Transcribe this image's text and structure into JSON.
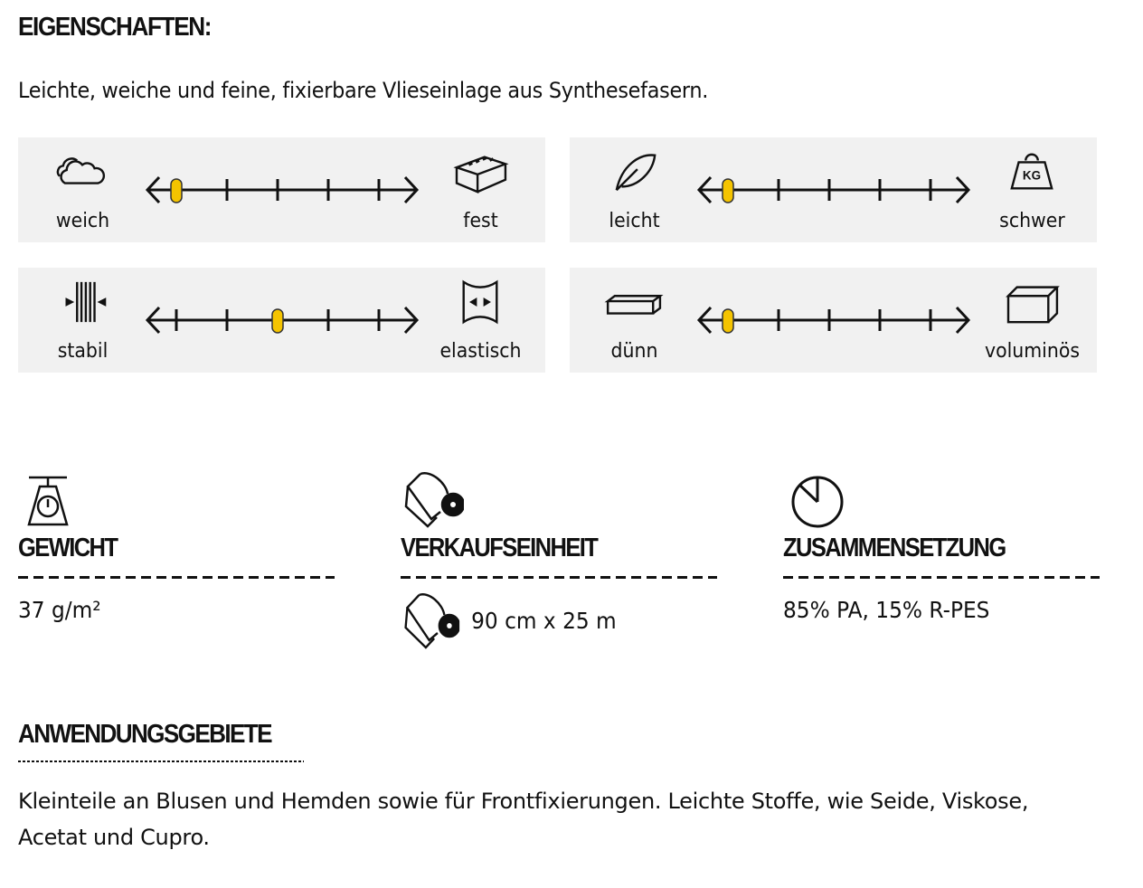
{
  "title": "EIGENSCHAFTEN:",
  "intro": "Leichte, weiche und feine, fixierbare Vlieseinlage aus Synthesefasern.",
  "scales": [
    {
      "left_label": "weich",
      "right_label": "fest",
      "left_icon": "cloud-icon",
      "right_icon": "brick-icon",
      "value": 1,
      "max": 5
    },
    {
      "left_label": "leicht",
      "right_label": "schwer",
      "left_icon": "feather-icon",
      "right_icon": "weight-icon",
      "weight_text": "KG",
      "value": 1,
      "max": 5
    },
    {
      "left_label": "stabil",
      "right_label": "elastisch",
      "left_icon": "stable-lines-icon",
      "right_icon": "stretch-icon",
      "value": 3,
      "max": 5
    },
    {
      "left_label": "dünn",
      "right_label": "voluminös",
      "left_icon": "thin-block-icon",
      "right_icon": "box-icon",
      "value": 1,
      "max": 5
    }
  ],
  "knob_color": "#f5c400",
  "panel_color": "#f1f1f1",
  "features": [
    {
      "icon": "scale-icon",
      "heading": "GEWICHT",
      "value": "37 g/m²"
    },
    {
      "icon": "roll-icon",
      "heading": "VERKAUFSEINHEIT",
      "value": "90 cm x 25 m",
      "value_icon": "roll-icon"
    },
    {
      "icon": "pie-icon",
      "heading": "ZUSAMMENSETZUNG",
      "value": "85% PA, 15% R-PES"
    }
  ],
  "applications": {
    "heading": "ANWENDUNGSGEBIETE",
    "text": "Kleinteile an Blusen und Hemden sowie für Frontfixierungen. Leichte Stoffe, wie Seide, Viskose, Acetat und Cupro."
  }
}
